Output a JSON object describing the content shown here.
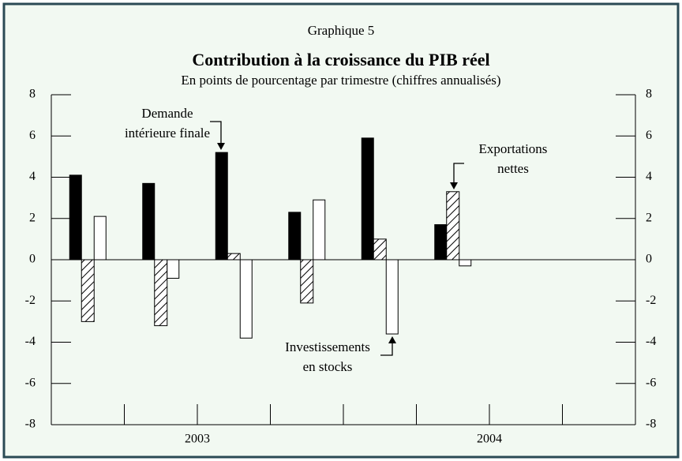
{
  "chart_data": {
    "type": "bar",
    "kicker": "Graphique 5",
    "title": "Contribution à la croissance du PIB réel",
    "subtitle": "En points de pourcentage par trimestre (chiffres annualisés)",
    "categories": [
      null,
      null,
      null,
      null,
      null,
      null,
      null,
      null
    ],
    "year_labels": [
      "2003",
      "2004"
    ],
    "series": [
      {
        "label": [
          "Demande",
          "intérieure finale"
        ],
        "color": "#000000",
        "values": [
          4.1,
          3.7,
          5.2,
          2.3,
          5.9,
          1.7,
          null,
          null
        ]
      },
      {
        "label": [
          "Exportations",
          "nettes"
        ],
        "color": "#ffffff",
        "pattern": "hatch",
        "values": [
          -3.0,
          -3.2,
          0.3,
          -2.1,
          1.0,
          3.3,
          null,
          null
        ]
      },
      {
        "label": [
          "Investissements",
          "en stocks"
        ],
        "color": "#ffffff",
        "values": [
          2.1,
          -0.9,
          -3.8,
          2.9,
          -3.6,
          -0.3,
          null,
          null
        ]
      }
    ],
    "ylim": [
      -8,
      8
    ],
    "yticks": [
      -8,
      -6,
      -4,
      -2,
      0,
      2,
      4,
      6,
      8
    ],
    "y2lim": [
      -8,
      8
    ],
    "y2ticks": [
      -8,
      -6,
      -4,
      -2,
      0,
      2,
      4,
      6,
      8
    ]
  }
}
